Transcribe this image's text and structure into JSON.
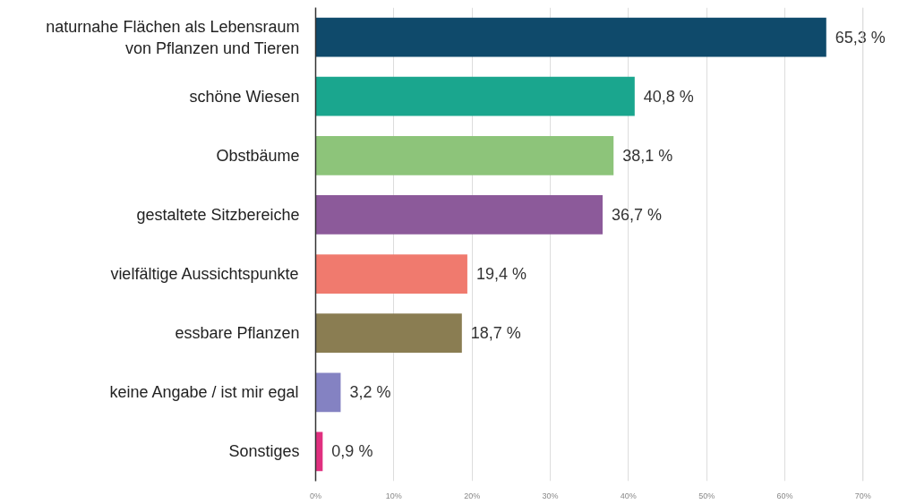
{
  "chart_data": {
    "type": "bar",
    "orientation": "horizontal",
    "categories": [
      "naturnahe Flächen als Lebensraum von Pflanzen und Tieren",
      "schöne Wiesen",
      "Obstbäume",
      "gestaltete Sitzbereiche",
      "vielfältige Aussichtspunkte",
      "essbare Pflanzen",
      "keine Angabe / ist mir egal",
      "Sonstiges"
    ],
    "values": [
      65.3,
      40.8,
      38.1,
      36.7,
      19.4,
      18.7,
      3.2,
      0.9
    ],
    "colors": [
      "#0f4a6b",
      "#1aa68e",
      "#8dc47a",
      "#8c5a9a",
      "#f07a6e",
      "#8a7d52",
      "#8482c2",
      "#e0307f"
    ],
    "value_labels": [
      "65,3 %",
      "40,8 %",
      "38,1 %",
      "36,7 %",
      "19,4 %",
      "18,7 %",
      "3,2 %",
      "0,9 %"
    ],
    "xlim": [
      0,
      70
    ],
    "xticks": [
      {
        "value": 0,
        "label": "0%"
      },
      {
        "value": 10,
        "label": "10%"
      },
      {
        "value": 20,
        "label": "20%"
      },
      {
        "value": 30,
        "label": "30%"
      },
      {
        "value": 40,
        "label": "40%"
      },
      {
        "value": 50,
        "label": "50%"
      },
      {
        "value": 60,
        "label": "60%"
      },
      {
        "value": 70,
        "label": "70%"
      }
    ],
    "grid": "x"
  }
}
